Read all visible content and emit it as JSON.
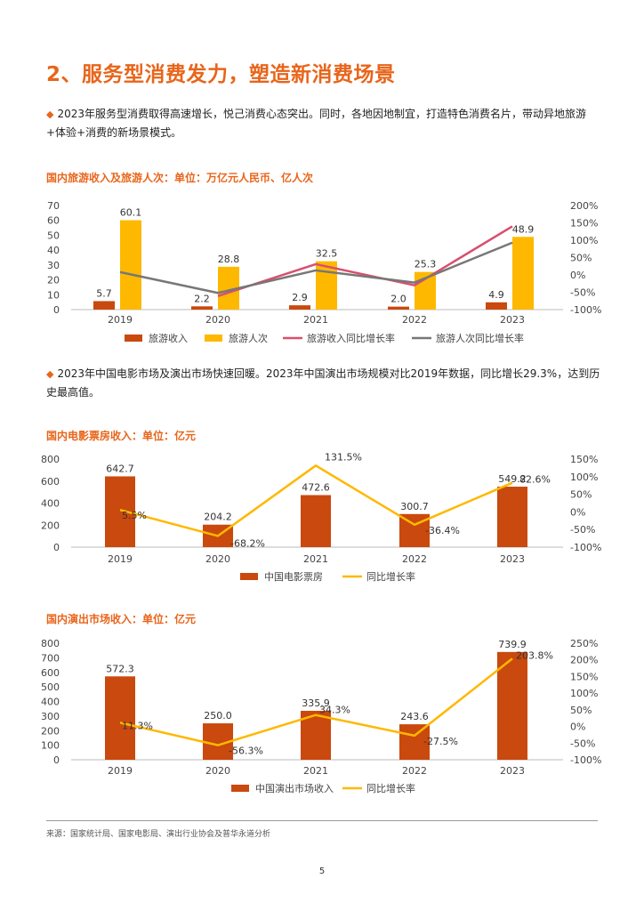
{
  "page": {
    "title": "2、服务型消费发力，塑造新消费场景",
    "bullets": [
      "2023年服务型消费取得高速增长，悦己消费心态突出。同时，各地因地制宜，打造特色消费名片，带动异地旅游+体验+消费的新场景模式。",
      "2023年中国电影市场及演出市场快速回暖。2023年中国演出市场规模对比2019年数据，同比增长29.3%，达到历史最高值。"
    ],
    "footer": "来源：国家统计局、国家电影局、演出行业协会及普华永道分析",
    "page_number": "5"
  },
  "chart_data": [
    {
      "type": "bar",
      "title": "国内旅游收入及旅游人次：单位：万亿元人民币、亿人次",
      "categories": [
        "2019",
        "2020",
        "2021",
        "2022",
        "2023"
      ],
      "ylim": [
        0,
        70
      ],
      "yticks": [
        "0",
        "10",
        "20",
        "30",
        "40",
        "50",
        "60",
        "70"
      ],
      "y2lim": [
        -100,
        200
      ],
      "y2ticks": [
        "-100%",
        "-50%",
        "0%",
        "50%",
        "100%",
        "150%",
        "200%"
      ],
      "series": [
        {
          "name": "旅游收入",
          "kind": "bar",
          "axis": "left",
          "values": [
            5.7,
            2.2,
            2.9,
            2.0,
            4.9
          ],
          "labels": [
            "5.7",
            "2.2",
            "2.9",
            "2.0",
            "4.9"
          ],
          "color": "#C9490E"
        },
        {
          "name": "旅游人次",
          "kind": "bar",
          "axis": "left",
          "values": [
            60.1,
            28.8,
            32.5,
            25.3,
            48.9
          ],
          "labels": [
            "60.1",
            "28.8",
            "32.5",
            "25.3",
            "48.9"
          ],
          "color": "#FFB800"
        },
        {
          "name": "旅游收入同比增长率",
          "kind": "line",
          "axis": "right",
          "values": [
            null,
            -61,
            31,
            -30,
            140
          ],
          "color": "#D94F6E"
        },
        {
          "name": "旅游人次同比增长率",
          "kind": "line",
          "axis": "right",
          "values": [
            8,
            -52,
            13,
            -22,
            93
          ],
          "color": "#777777"
        }
      ],
      "legend": "bottom"
    },
    {
      "type": "bar",
      "title": "国内电影票房收入：单位：亿元",
      "categories": [
        "2019",
        "2020",
        "2021",
        "2022",
        "2023"
      ],
      "ylim": [
        0,
        800
      ],
      "yticks": [
        "0",
        "200",
        "400",
        "600",
        "800"
      ],
      "y2lim": [
        -100,
        150
      ],
      "y2ticks": [
        "-100%",
        "-50%",
        "0%",
        "50%",
        "100%",
        "150%"
      ],
      "series": [
        {
          "name": "中国电影票房",
          "kind": "bar",
          "axis": "left",
          "values": [
            642.7,
            204.2,
            472.6,
            300.7,
            549.2
          ],
          "labels": [
            "642.7",
            "204.2",
            "472.6",
            "300.7",
            "549.2"
          ],
          "color": "#C9490E"
        },
        {
          "name": "同比增长率",
          "kind": "line",
          "axis": "right",
          "values": [
            5.5,
            -68.2,
            131.5,
            -36.4,
            82.6
          ],
          "labels": [
            "5.5%",
            "-68.2%",
            "131.5%",
            "-36.4%",
            "82.6%"
          ],
          "color": "#FFB800"
        }
      ],
      "legend": "bottom"
    },
    {
      "type": "bar",
      "title": "国内演出市场收入：单位：亿元",
      "categories": [
        "2019",
        "2020",
        "2021",
        "2022",
        "2023"
      ],
      "ylim": [
        0,
        800
      ],
      "yticks": [
        "0",
        "100",
        "200",
        "300",
        "400",
        "500",
        "600",
        "700",
        "800"
      ],
      "y2lim": [
        -100,
        250
      ],
      "y2ticks": [
        "-100%",
        "-50%",
        "0%",
        "50%",
        "100%",
        "150%",
        "200%",
        "250%"
      ],
      "series": [
        {
          "name": "中国演出市场收入",
          "kind": "bar",
          "axis": "left",
          "values": [
            572.3,
            250.0,
            335.9,
            243.6,
            739.9
          ],
          "labels": [
            "572.3",
            "250.0",
            "335.9",
            "243.6",
            "739.9"
          ],
          "color": "#C9490E"
        },
        {
          "name": "同比增长率",
          "kind": "line",
          "axis": "right",
          "values": [
            11.3,
            -56.3,
            34.3,
            -27.5,
            203.8
          ],
          "labels": [
            "11.3%",
            "-56.3%",
            "34.3%",
            "-27.5%",
            "203.8%"
          ],
          "color": "#FFB800"
        }
      ],
      "legend": "bottom"
    }
  ]
}
